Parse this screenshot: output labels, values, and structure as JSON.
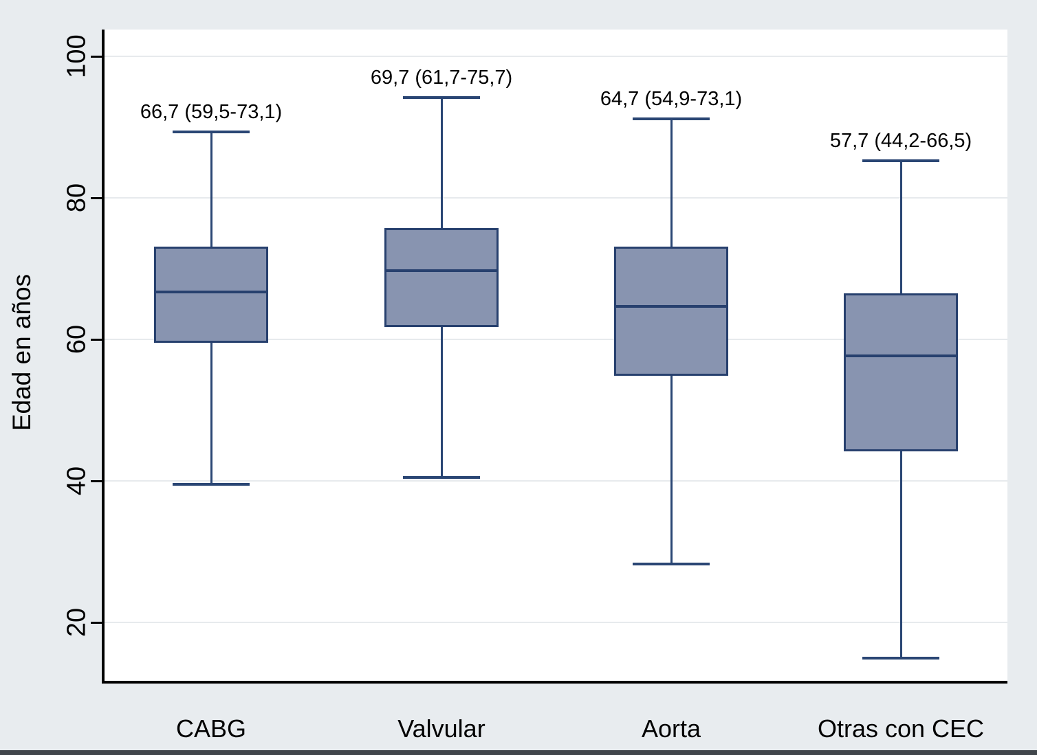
{
  "page": {
    "background": "#e8ecef",
    "bottom_strip_color": "#41464b"
  },
  "chart_data": {
    "type": "box",
    "title": "",
    "xlabel": "",
    "ylabel": "Edad en años",
    "ylim": [
      11.5,
      103.5
    ],
    "yticks": [
      20,
      40,
      60,
      80,
      100
    ],
    "grid": true,
    "legend": "none",
    "categories": [
      "CABG",
      "Valvular",
      "Aorta",
      "Otras con CEC"
    ],
    "series": [
      {
        "category": "CABG",
        "median": 66.7,
        "q1": 59.5,
        "q3": 73.1,
        "whisker_low": 39.5,
        "whisker_high": 89.3,
        "annotation": "66,7 (59,5-73,1)"
      },
      {
        "category": "Valvular",
        "median": 69.7,
        "q1": 61.7,
        "q3": 75.7,
        "whisker_low": 40.5,
        "whisker_high": 94.2,
        "annotation": "69,7 (61,7-75,7)"
      },
      {
        "category": "Aorta",
        "median": 64.7,
        "q1": 54.9,
        "q3": 73.1,
        "whisker_low": 28.3,
        "whisker_high": 91.2,
        "annotation": "64,7 (54,9-73,1)"
      },
      {
        "category": "Otras con CEC",
        "median": 57.7,
        "q1": 44.2,
        "q3": 66.5,
        "whisker_low": 15.0,
        "whisker_high": 85.2,
        "annotation": "57,7 (44,2-66,5)"
      }
    ],
    "colors": {
      "box_fill": "#8894b0",
      "box_border": "#27406e",
      "whisker": "#2a4674",
      "axis": "#000000",
      "gridline": "#e7eaed",
      "plot_background": "#ffffff",
      "text": "#000000"
    }
  }
}
